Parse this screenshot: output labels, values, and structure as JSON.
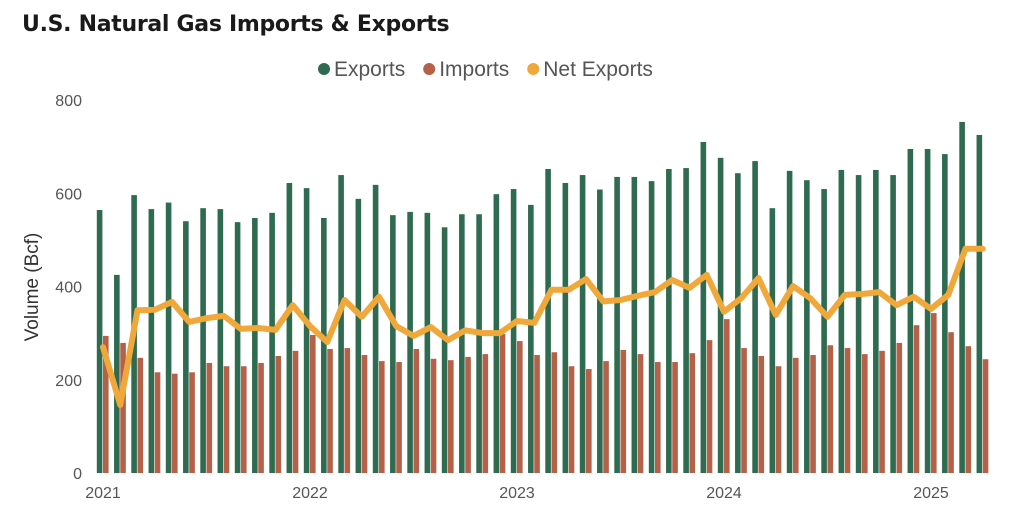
{
  "chart_data": {
    "type": "bar",
    "title": "U.S. Natural Gas Imports & Exports",
    "ylabel": "Volume (Bcf)",
    "xlabel": "",
    "ylim": [
      0,
      800
    ],
    "yticks": [
      0,
      200,
      400,
      600,
      800
    ],
    "xtick_labels": [
      "2021",
      "2022",
      "2023",
      "2024",
      "2025"
    ],
    "legend_placement": "top-center",
    "grid": false,
    "x": [
      "2021-01",
      "2021-02",
      "2021-03",
      "2021-04",
      "2021-05",
      "2021-06",
      "2021-07",
      "2021-08",
      "2021-09",
      "2021-10",
      "2021-11",
      "2021-12",
      "2022-01",
      "2022-02",
      "2022-03",
      "2022-04",
      "2022-05",
      "2022-06",
      "2022-07",
      "2022-08",
      "2022-09",
      "2022-10",
      "2022-11",
      "2022-12",
      "2023-01",
      "2023-02",
      "2023-03",
      "2023-04",
      "2023-05",
      "2023-06",
      "2023-07",
      "2023-08",
      "2023-09",
      "2023-10",
      "2023-11",
      "2023-12",
      "2024-01",
      "2024-02",
      "2024-03",
      "2024-04",
      "2024-05",
      "2024-06",
      "2024-07",
      "2024-08",
      "2024-09",
      "2024-10",
      "2024-11",
      "2024-12",
      "2025-01",
      "2025-02",
      "2025-03",
      "2025-04"
    ],
    "series": [
      {
        "name": "Exports",
        "type": "bar",
        "color": "#2e6b50",
        "values": [
          564,
          425,
          596,
          566,
          580,
          540,
          568,
          566,
          538,
          547,
          558,
          622,
          611,
          547,
          639,
          588,
          618,
          553,
          560,
          558,
          527,
          555,
          555,
          598,
          609,
          575,
          652,
          622,
          639,
          608,
          635,
          635,
          626,
          652,
          654,
          710,
          676,
          643,
          669,
          568,
          648,
          628,
          609,
          650,
          639,
          650,
          639,
          695,
          695,
          684,
          753,
          725
        ]
      },
      {
        "name": "Imports",
        "type": "bar",
        "color": "#b5614a",
        "values": [
          294,
          279,
          247,
          216,
          213,
          216,
          236,
          229,
          229,
          236,
          251,
          262,
          296,
          266,
          268,
          253,
          240,
          238,
          266,
          245,
          242,
          249,
          255,
          298,
          283,
          253,
          259,
          229,
          223,
          240,
          264,
          255,
          238,
          238,
          257,
          285,
          330,
          268,
          251,
          229,
          247,
          253,
          274,
          268,
          255,
          262,
          279,
          317,
          343,
          302,
          272,
          244
        ]
      },
      {
        "name": "Net Exports",
        "type": "line",
        "color": "#f0a83a",
        "values": [
          270,
          146,
          349,
          350,
          367,
          324,
          332,
          337,
          309,
          311,
          307,
          360,
          315,
          281,
          371,
          335,
          378,
          315,
          294,
          313,
          285,
          306,
          300,
          300,
          326,
          322,
          393,
          393,
          416,
          368,
          371,
          380,
          388,
          414,
          397,
          425,
          346,
          375,
          418,
          339,
          401,
          375,
          335,
          382,
          384,
          388,
          360,
          378,
          352,
          382,
          481,
          481
        ]
      }
    ]
  }
}
